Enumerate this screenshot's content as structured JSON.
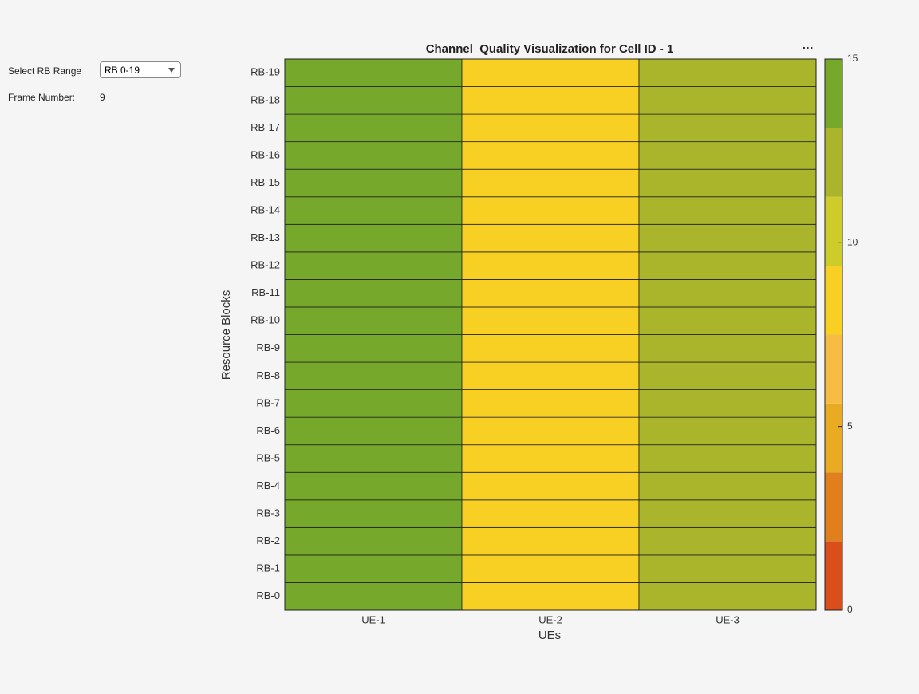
{
  "controls": {
    "rb_range_label": "Select RB Range",
    "rb_range_value": "RB 0-19",
    "frame_label": "Frame Number:",
    "frame_value": 9
  },
  "chart_data": {
    "type": "heatmap",
    "title": "Channel  Quality Visualization for Cell ID - 1",
    "x_label": "UEs",
    "y_label": "Resource Blocks",
    "x_categories": [
      "UE-1",
      "UE-2",
      "UE-3"
    ],
    "y_categories": [
      "RB-0",
      "RB-1",
      "RB-2",
      "RB-3",
      "RB-4",
      "RB-5",
      "RB-6",
      "RB-7",
      "RB-8",
      "RB-9",
      "RB-10",
      "RB-11",
      "RB-12",
      "RB-13",
      "RB-14",
      "RB-15",
      "RB-16",
      "RB-17",
      "RB-18",
      "RB-19"
    ],
    "values": [
      [
        14,
        9,
        12
      ],
      [
        14,
        9,
        12
      ],
      [
        14,
        9,
        12
      ],
      [
        14,
        9,
        12
      ],
      [
        14,
        9,
        12
      ],
      [
        14,
        9,
        12
      ],
      [
        14,
        9,
        12
      ],
      [
        14,
        9,
        12
      ],
      [
        14,
        9,
        12
      ],
      [
        14,
        9,
        12
      ],
      [
        14,
        9,
        12
      ],
      [
        14,
        9,
        12
      ],
      [
        14,
        9,
        12
      ],
      [
        14,
        9,
        12
      ],
      [
        14,
        9,
        12
      ],
      [
        14,
        9,
        12
      ],
      [
        14,
        9,
        12
      ],
      [
        14,
        9,
        12
      ],
      [
        14,
        9,
        12
      ],
      [
        14,
        9,
        12
      ]
    ],
    "colormap": [
      "#d94e1a",
      "#e07f1c",
      "#e8ab21",
      "#f6bc43",
      "#f7d023",
      "#cdcc2a",
      "#aab52b",
      "#76a82b"
    ],
    "clim": [
      0,
      15
    ],
    "cticks": [
      0,
      5,
      10,
      15
    ]
  }
}
